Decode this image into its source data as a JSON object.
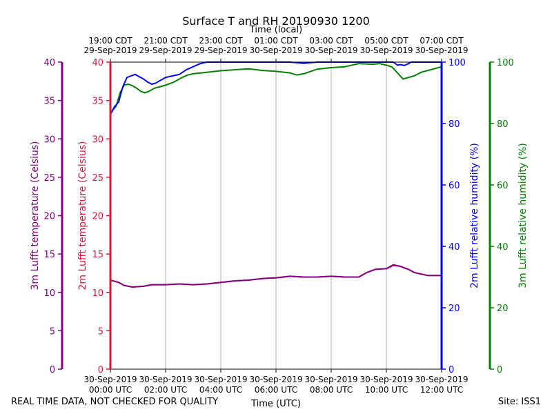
{
  "chart_data": {
    "type": "line",
    "title": "Surface T and RH 20190930 1200",
    "xlabel": "Time (UTC)",
    "top_xlabel": "Time (local)",
    "x_range_hours_utc": [
      0,
      12
    ],
    "bottom_ticks": [
      {
        "hour": 0,
        "date": "30-Sep-2019",
        "time": "00:00 UTC"
      },
      {
        "hour": 2,
        "date": "30-Sep-2019",
        "time": "02:00 UTC"
      },
      {
        "hour": 4,
        "date": "30-Sep-2019",
        "time": "04:00 UTC"
      },
      {
        "hour": 6,
        "date": "30-Sep-2019",
        "time": "06:00 UTC"
      },
      {
        "hour": 8,
        "date": "30-Sep-2019",
        "time": "08:00 UTC"
      },
      {
        "hour": 10,
        "date": "30-Sep-2019",
        "time": "10:00 UTC"
      },
      {
        "hour": 12,
        "date": "30-Sep-2019",
        "time": "12:00 UTC"
      }
    ],
    "top_ticks": [
      {
        "hour": 0,
        "time": "19:00 CDT",
        "date": "29-Sep-2019"
      },
      {
        "hour": 2,
        "time": "21:00 CDT",
        "date": "29-Sep-2019"
      },
      {
        "hour": 4,
        "time": "23:00 CDT",
        "date": "29-Sep-2019"
      },
      {
        "hour": 6,
        "time": "01:00 CDT",
        "date": "30-Sep-2019"
      },
      {
        "hour": 8,
        "time": "03:00 CDT",
        "date": "30-Sep-2019"
      },
      {
        "hour": 10,
        "time": "05:00 CDT",
        "date": "30-Sep-2019"
      },
      {
        "hour": 12,
        "time": "07:00 CDT",
        "date": "30-Sep-2019"
      }
    ],
    "axes": {
      "t3m": {
        "label": "3m Lufft temperature (Celsius)",
        "range": [
          0,
          40
        ],
        "ticks": [
          0,
          5,
          10,
          15,
          20,
          25,
          30,
          35,
          40
        ],
        "color": "#800080"
      },
      "t2m": {
        "label": "2m Lufft temperature (Celsius)",
        "range": [
          0,
          40
        ],
        "ticks": [
          0,
          5,
          10,
          15,
          20,
          25,
          30,
          35,
          40
        ],
        "color": "#dc143c"
      },
      "rh2m": {
        "label": "2m Lufft relative humidity (%)",
        "range": [
          0,
          100
        ],
        "ticks": [
          0,
          20,
          40,
          60,
          80,
          100
        ],
        "color": "#0000ff"
      },
      "rh3m": {
        "label": "3m Lufft relative humidity (%)",
        "range": [
          0,
          100
        ],
        "ticks": [
          0,
          20,
          40,
          60,
          80,
          100
        ],
        "color": "#008000"
      }
    },
    "series": [
      {
        "name": "2m relative humidity",
        "axis": "rh2m",
        "color": "#0000ff",
        "x": [
          0,
          0.15,
          0.3,
          0.45,
          0.6,
          0.75,
          0.9,
          1.05,
          1.2,
          1.35,
          1.5,
          1.65,
          1.8,
          2.0,
          2.25,
          2.5,
          2.75,
          3.0,
          3.25,
          3.5,
          4.0,
          5.0,
          6.0,
          6.5,
          7.0,
          7.5,
          8.0,
          8.5,
          9.0,
          9.5,
          10.0,
          10.25,
          10.4,
          10.5,
          10.65,
          10.8,
          10.9,
          11.0,
          11.5,
          12.0
        ],
        "y": [
          83,
          85.5,
          87,
          92,
          95,
          95.5,
          96,
          95.2,
          94.5,
          93.5,
          92.8,
          93.2,
          94,
          95,
          95.5,
          96,
          97.5,
          98.5,
          99.5,
          100,
          100,
          100,
          100,
          100,
          99.6,
          100,
          100,
          100,
          100,
          100,
          100,
          100,
          99,
          99.2,
          98.9,
          99.5,
          100,
          100,
          100,
          100
        ]
      },
      {
        "name": "3m relative humidity",
        "axis": "rh3m",
        "color": "#008000",
        "x": [
          0,
          0.1,
          0.2,
          0.35,
          0.5,
          0.65,
          0.8,
          0.95,
          1.1,
          1.25,
          1.4,
          1.6,
          1.8,
          2.0,
          2.3,
          2.6,
          2.8,
          3.0,
          3.3,
          3.6,
          4.0,
          4.5,
          5.0,
          5.5,
          6.0,
          6.5,
          6.75,
          7.0,
          7.5,
          8.0,
          8.5,
          9.0,
          9.5,
          9.75,
          10.0,
          10.2,
          10.4,
          10.6,
          10.8,
          11.0,
          11.3,
          11.6,
          12.0
        ],
        "y": [
          83,
          84.5,
          85.5,
          90,
          92.5,
          92.8,
          92.3,
          91.5,
          90.5,
          90,
          90.5,
          91.5,
          92,
          92.5,
          93.5,
          95,
          95.8,
          96.2,
          96.5,
          96.8,
          97.2,
          97.5,
          97.8,
          97.3,
          97,
          96.5,
          95.8,
          96.2,
          97.7,
          98.2,
          98.5,
          99.5,
          99.3,
          99.5,
          99,
          98.4,
          96.5,
          94.5,
          95,
          95.5,
          96.8,
          97.5,
          98.5
        ]
      },
      {
        "name": "2m temperature",
        "axis": "t2m",
        "color": "#dc143c",
        "x": [
          0,
          0.3,
          0.5,
          0.8,
          1.2,
          1.5,
          2.0,
          2.5,
          3.0,
          3.5,
          4.0,
          4.5,
          5.0,
          5.5,
          6.0,
          6.5,
          7.0,
          7.5,
          8.0,
          8.5,
          9.0,
          9.3,
          9.6,
          10.0,
          10.25,
          10.5,
          10.8,
          11.0,
          11.5,
          12.0
        ],
        "y": [
          11.6,
          11.3,
          10.9,
          10.7,
          10.8,
          11.0,
          11.0,
          11.1,
          11.0,
          11.1,
          11.3,
          11.5,
          11.6,
          11.8,
          11.9,
          12.1,
          12.0,
          12.0,
          12.1,
          12.0,
          12.0,
          12.6,
          13.0,
          13.1,
          13.5,
          13.4,
          13.0,
          12.6,
          12.2,
          12.2
        ]
      },
      {
        "name": "3m temperature",
        "axis": "t3m",
        "color": "#800080",
        "x": [
          0,
          0.3,
          0.5,
          0.8,
          1.2,
          1.5,
          2.0,
          2.5,
          3.0,
          3.5,
          4.0,
          4.5,
          5.0,
          5.5,
          6.0,
          6.5,
          7.0,
          7.5,
          8.0,
          8.5,
          9.0,
          9.3,
          9.6,
          10.0,
          10.25,
          10.5,
          10.8,
          11.0,
          11.5,
          12.0
        ],
        "y": [
          11.6,
          11.3,
          10.9,
          10.7,
          10.8,
          11.0,
          11.0,
          11.1,
          11.0,
          11.1,
          11.3,
          11.5,
          11.6,
          11.8,
          11.9,
          12.1,
          12.0,
          12.0,
          12.1,
          12.0,
          12.0,
          12.6,
          13.0,
          13.1,
          13.6,
          13.4,
          13.0,
          12.6,
          12.2,
          12.2
        ]
      }
    ],
    "grid": "vertical"
  },
  "footer": {
    "note": "REAL TIME DATA, NOT CHECKED FOR QUALITY",
    "site": "Site: ISS1"
  }
}
